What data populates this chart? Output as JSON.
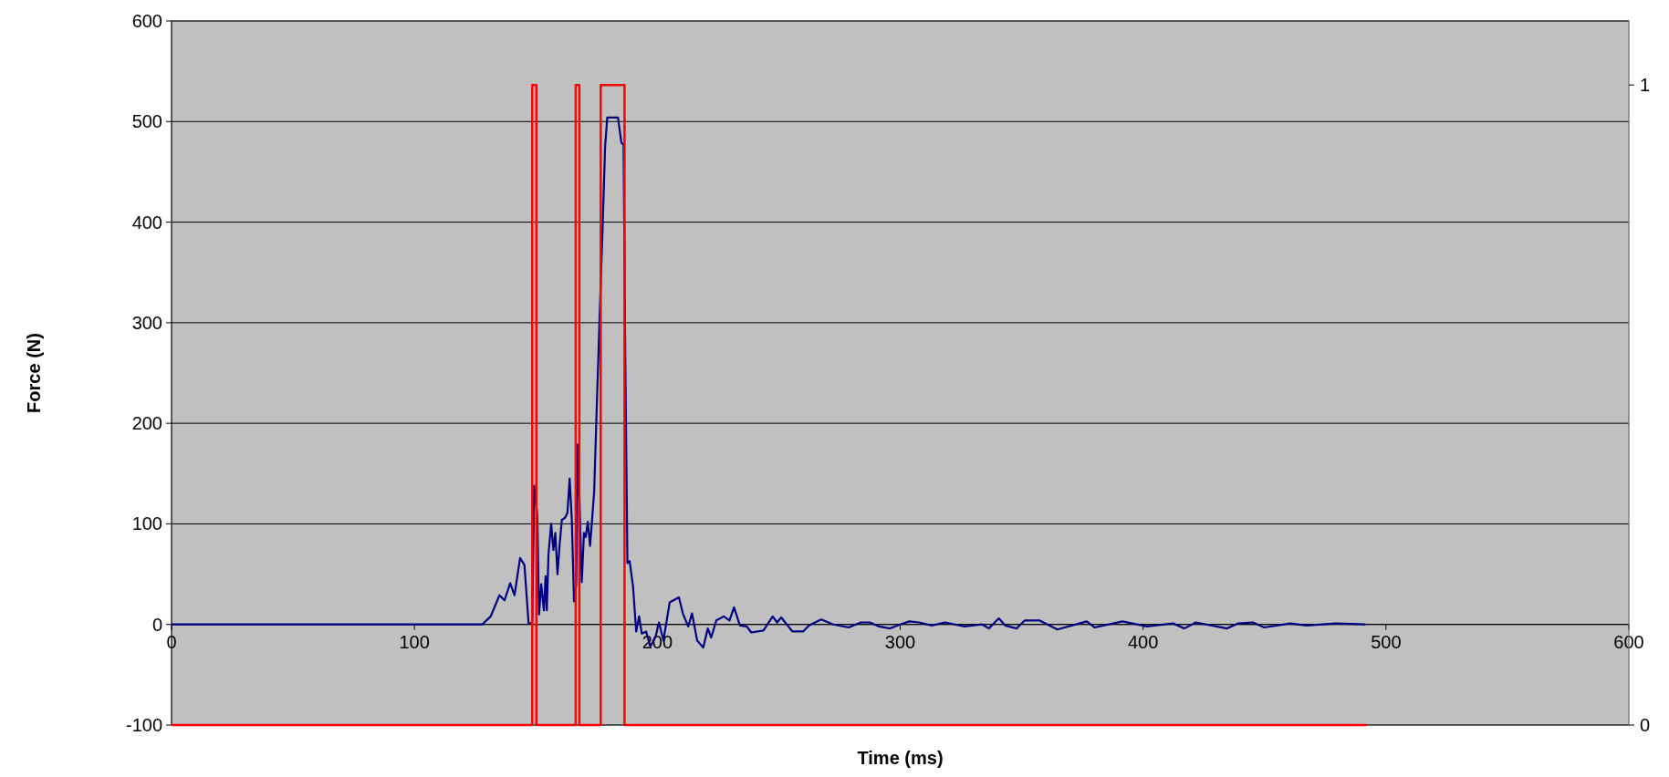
{
  "chart_data": {
    "type": "line",
    "xlabel": "Time (ms)",
    "ylabel": "Force (N)",
    "xlim": [
      0,
      600
    ],
    "xticks": [
      0,
      100,
      200,
      300,
      400,
      500,
      600
    ],
    "ylim": [
      -100,
      600
    ],
    "yticks": [
      -100,
      0,
      100,
      200,
      300,
      400,
      500,
      600
    ],
    "y2lim": [
      0,
      1.1
    ],
    "y2ticks": [
      0,
      1
    ],
    "grid": "y",
    "marker": "none",
    "line_style": "solid",
    "series": [
      {
        "color": "#000080",
        "x": [
          0,
          117.2,
          127.9,
          131.4,
          135,
          137.1,
          139.4,
          141.2,
          143.5,
          145.3,
          147,
          148.5,
          149.3,
          150.6,
          151.3,
          152.2,
          153.3,
          154,
          154.5,
          155.2,
          156.3,
          157.2,
          158,
          158.9,
          159.8,
          160.7,
          162,
          163,
          163.9,
          164.8,
          165.7,
          166.6,
          167.3,
          168.9,
          169.8,
          170.5,
          171.4,
          172.3,
          173.2,
          174,
          174.9,
          176.3,
          177.6,
          178.5,
          179.4,
          183.8,
          185.2,
          186.1,
          186.8,
          187.7,
          188.6,
          190,
          191.3,
          192.5,
          193.6,
          195.4,
          197.1,
          199.3,
          200.7,
          202.5,
          205.1,
          208.9,
          210.5,
          212.7,
          214.3,
          216.4,
          218.9,
          220.8,
          222.2,
          224.3,
          227.4,
          229.7,
          231.6,
          234,
          236.8,
          238.7,
          243.7,
          247.5,
          249.3,
          251,
          255.6,
          260,
          262.5,
          267.5,
          272.5,
          278.8,
          283.8,
          287.5,
          291.3,
          295.7,
          300,
          303.8,
          307.7,
          313,
          318.4,
          326.5,
          333.8,
          336.5,
          340.6,
          343.2,
          347.9,
          351.3,
          357.3,
          364.7,
          376.8,
          380.1,
          391.5,
          401.6,
          412.3,
          417,
          421.7,
          434.5,
          439.2,
          445.2,
          449.9,
          460.6,
          467.3,
          479.4,
          491.5
        ],
        "values": [
          0,
          0,
          0,
          8,
          29,
          24,
          41,
          29,
          66,
          59,
          1,
          1,
          138,
          108,
          10,
          40,
          14,
          48,
          14,
          70,
          100,
          74,
          91,
          50,
          80,
          104,
          106,
          111,
          145,
          104,
          23,
          40,
          179,
          42,
          91,
          87,
          102,
          78,
          106,
          132,
          203,
          310,
          404,
          475,
          504,
          504,
          479,
          477,
          267,
          61,
          63,
          38,
          -7,
          8,
          -9,
          -7,
          -22,
          -12,
          2,
          -16,
          22,
          27,
          11,
          -2,
          11,
          -16,
          -23,
          -4,
          -13,
          4,
          8,
          4,
          17,
          -1,
          -2,
          -8,
          -6,
          8,
          2,
          7,
          -7,
          -7,
          -1,
          5,
          0,
          -3,
          2,
          2,
          -2,
          -4,
          0,
          3,
          2,
          -1,
          2,
          -2,
          0,
          -4,
          6,
          -1,
          -4,
          4,
          4,
          -5,
          3,
          -3,
          3,
          -2,
          1,
          -4,
          2,
          -4,
          1,
          2,
          -3,
          1,
          -1,
          1,
          0
        ]
      },
      {
        "color": "#ff0000",
        "axis": "y2",
        "type": "step",
        "x": [
          0,
          148.5,
          148.5,
          150.2,
          150.2,
          166.4,
          166.4,
          167.9,
          167.9,
          176.7,
          176.7,
          186.5,
          186.5,
          492
        ],
        "values": [
          0,
          0,
          1,
          1,
          0,
          0,
          1,
          1,
          0,
          0,
          1,
          1,
          0,
          0
        ]
      }
    ]
  }
}
